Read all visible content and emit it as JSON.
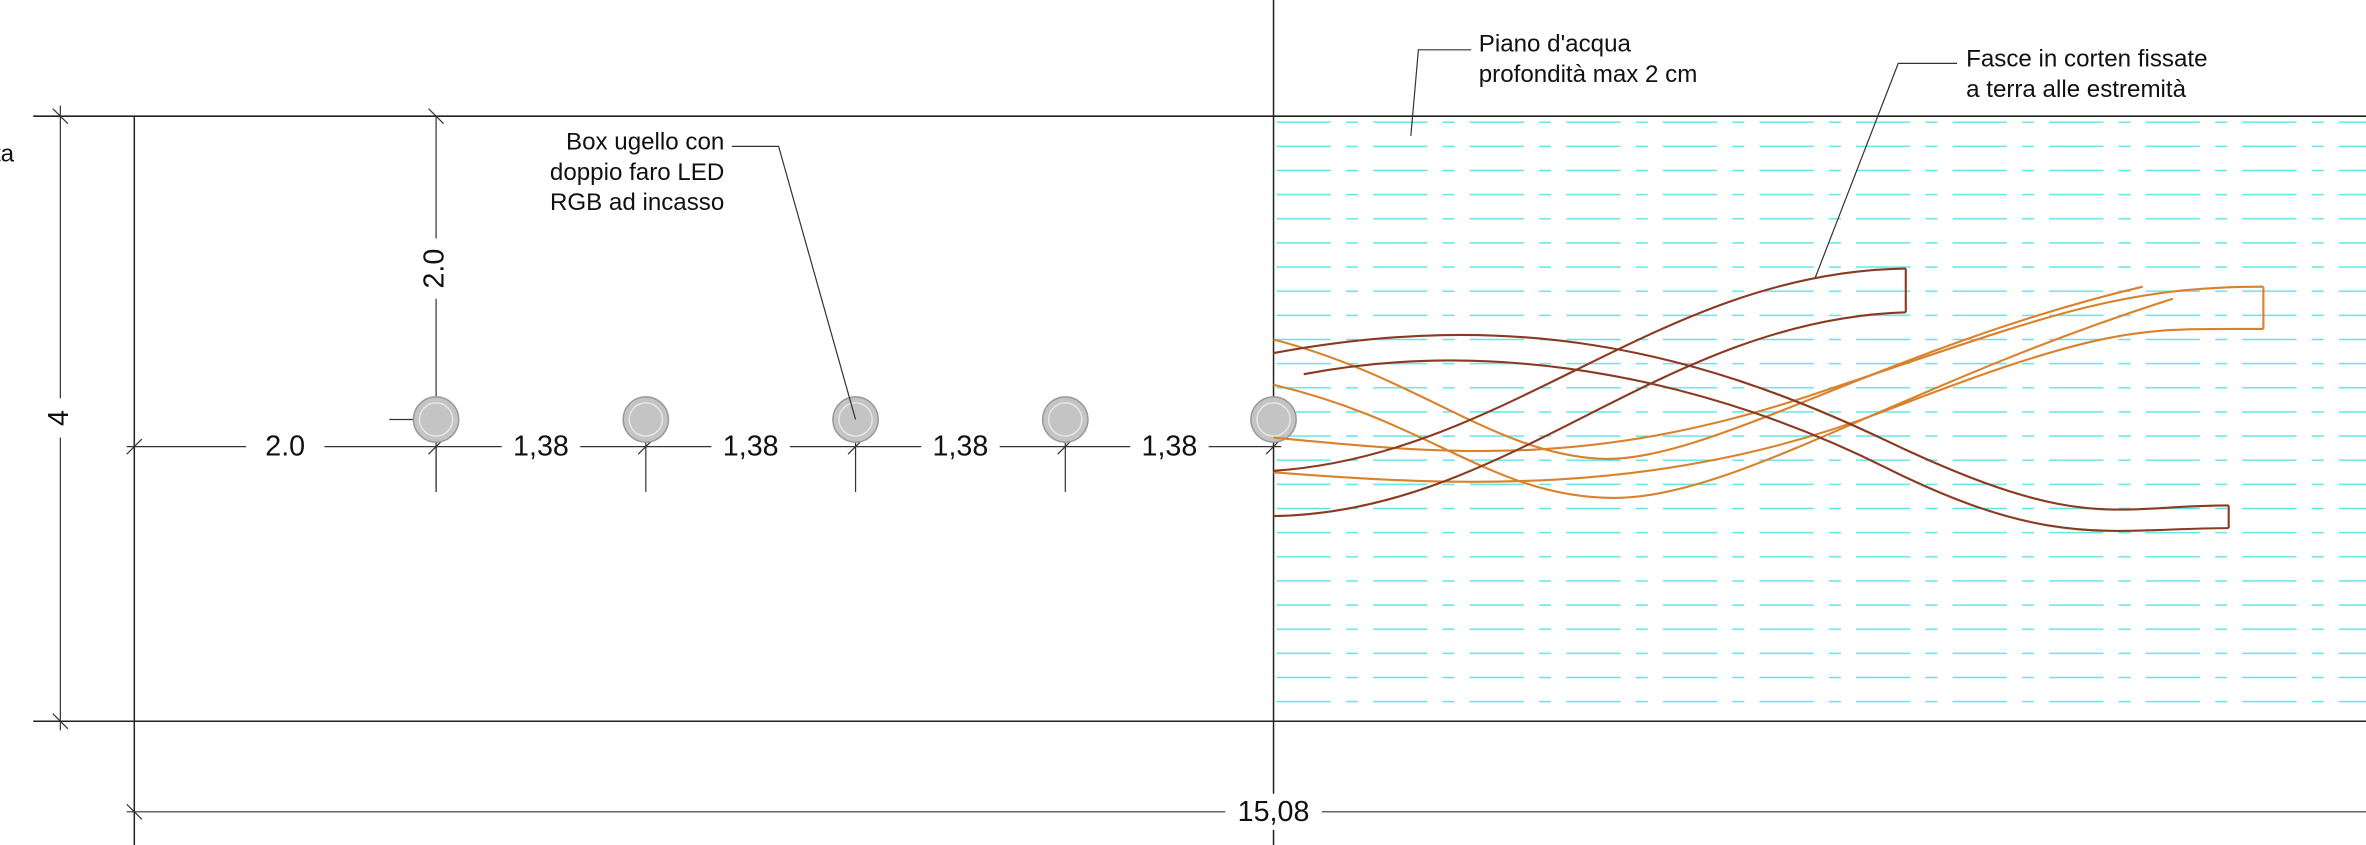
{
  "edge_text": "ta",
  "labels": {
    "nozzle_box": [
      "Box ugello con",
      "doppio faro LED",
      "RGB ad incasso"
    ],
    "water_plane": [
      "Piano d'acqua",
      "profondità max 2 cm"
    ],
    "corten_bands": [
      "Fasce in corten fissate",
      "a terra alle estremità"
    ]
  },
  "dimensions": {
    "height": "4",
    "offset_vertical": "2.0",
    "offset_horizontal": "2.0",
    "spacings": [
      "1,38",
      "1,38",
      "1,38",
      "1,38"
    ],
    "total": "15,08"
  }
}
